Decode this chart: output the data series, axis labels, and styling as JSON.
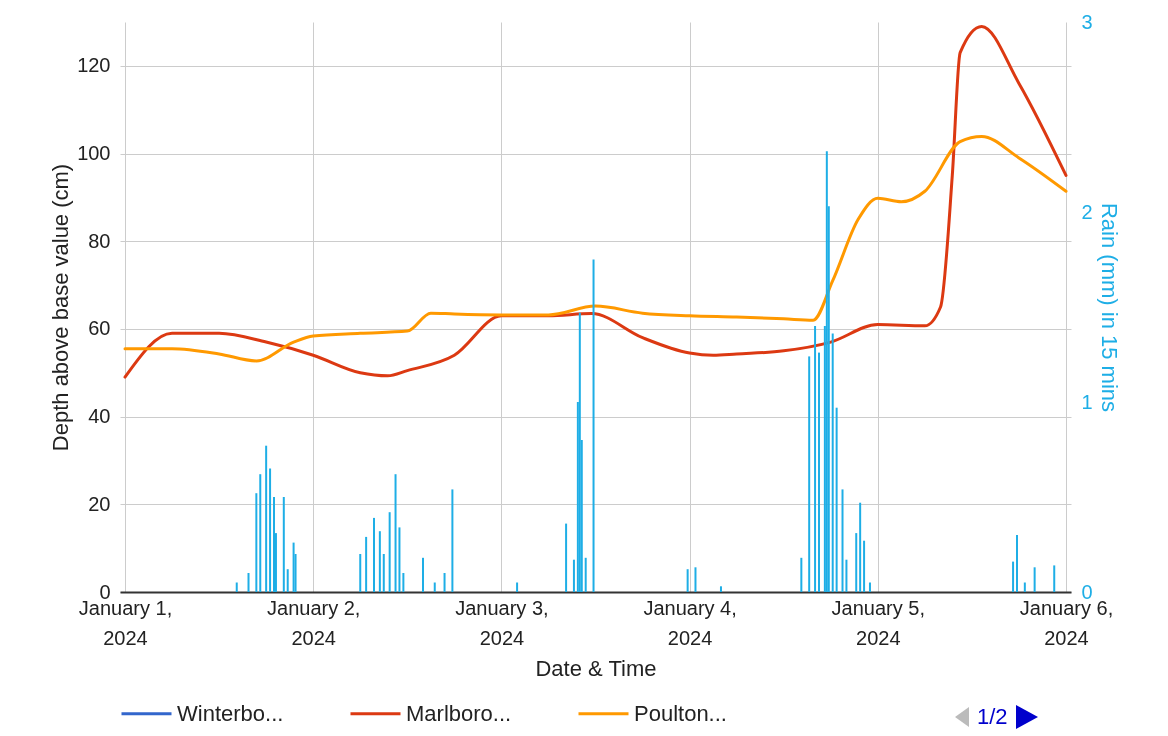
{
  "chart_data": {
    "type": "line",
    "xlabel": "Date & Time",
    "ylabel": "Depth above base value (cm)",
    "y2label": "Rain (mm) in 15 mins",
    "xlim": [
      "2024-01-01T00:00",
      "2024-01-06T00:00"
    ],
    "xticks": [
      {
        "value": "2024-01-01",
        "label": "January 1, 2024"
      },
      {
        "value": "2024-01-02",
        "label": "January 2, 2024"
      },
      {
        "value": "2024-01-03",
        "label": "January 3, 2024"
      },
      {
        "value": "2024-01-04",
        "label": "January 4, 2024"
      },
      {
        "value": "2024-01-05",
        "label": "January 5, 2024"
      },
      {
        "value": "2024-01-06",
        "label": "January 6, 2024"
      }
    ],
    "ylim": [
      0,
      130
    ],
    "yticks": [
      0,
      20,
      40,
      60,
      80,
      100,
      120
    ],
    "y2lim": [
      0,
      3
    ],
    "y2ticks": [
      0,
      1,
      2,
      3
    ],
    "grid": true,
    "legend": "bottom",
    "annotations": [
      "1/2"
    ],
    "series": [
      {
        "name": "Winterbo...",
        "color": "#3366cc"
      },
      {
        "name": "Marlboro...",
        "color": "#dc3912",
        "x": [
          "2024-01-01T00:00",
          "2024-01-01T06:00",
          "2024-01-01T12:00",
          "2024-01-01T18:00",
          "2024-01-02T00:00",
          "2024-01-02T06:00",
          "2024-01-02T09:30",
          "2024-01-02T12:00",
          "2024-01-02T18:00",
          "2024-01-03T00:00",
          "2024-01-03T06:00",
          "2024-01-03T11:30",
          "2024-01-03T18:00",
          "2024-01-04T00:00",
          "2024-01-04T03:00",
          "2024-01-04T06:00",
          "2024-01-04T12:00",
          "2024-01-04T18:00",
          "2024-01-05T00:00",
          "2024-01-05T06:00",
          "2024-01-05T08:00",
          "2024-01-05T09:30",
          "2024-01-05T10:30",
          "2024-01-05T13:15",
          "2024-01-05T18:00",
          "2024-01-06T00:00"
        ],
        "values": [
          49,
          59,
          59,
          57,
          54,
          50,
          49.3,
          50.5,
          54,
          63,
          63,
          63.5,
          58,
          54.5,
          54,
          54.3,
          55,
          57,
          61,
          60.7,
          65,
          95,
          123,
          129,
          116,
          95
        ]
      },
      {
        "name": "Poulton...",
        "color": "#ff9900",
        "x": [
          "2024-01-01T00:00",
          "2024-01-01T06:00",
          "2024-01-01T12:00",
          "2024-01-01T16:45",
          "2024-01-01T21:30",
          "2024-01-02T00:00",
          "2024-01-02T06:00",
          "2024-01-02T12:00",
          "2024-01-02T15:00",
          "2024-01-02T18:00",
          "2024-01-03T00:00",
          "2024-01-03T06:00",
          "2024-01-03T12:00",
          "2024-01-03T18:00",
          "2024-01-04T00:00",
          "2024-01-04T06:00",
          "2024-01-04T12:00",
          "2024-01-04T15:45",
          "2024-01-04T18:15",
          "2024-01-04T21:30",
          "2024-01-05T00:00",
          "2024-01-05T03:00",
          "2024-01-05T06:00",
          "2024-01-05T10:30",
          "2024-01-05T13:15",
          "2024-01-05T18:00",
          "2024-01-06T00:00"
        ],
        "values": [
          55.5,
          55.5,
          54.3,
          52.7,
          57,
          58.4,
          59,
          59.5,
          63.6,
          63.4,
          63.2,
          63.2,
          65.2,
          63.6,
          63,
          62.7,
          62.3,
          62,
          71,
          85,
          89.8,
          89,
          91.4,
          102.7,
          103.9,
          99,
          91.4
        ]
      },
      {
        "type": "bar",
        "axis": "y2",
        "color": "#1eaee6",
        "x": [
          "2024-01-01T14:15",
          "2024-01-01T15:45",
          "2024-01-01T16:45",
          "2024-01-01T17:15",
          "2024-01-01T18:00",
          "2024-01-01T18:30",
          "2024-01-01T19:00",
          "2024-01-01T19:15",
          "2024-01-01T20:15",
          "2024-01-01T20:45",
          "2024-01-01T21:30",
          "2024-01-01T21:45",
          "2024-01-02T06:00",
          "2024-01-02T06:45",
          "2024-01-02T07:45",
          "2024-01-02T08:30",
          "2024-01-02T09:00",
          "2024-01-02T09:45",
          "2024-01-02T10:30",
          "2024-01-02T11:00",
          "2024-01-02T11:30",
          "2024-01-02T14:00",
          "2024-01-02T15:30",
          "2024-01-02T16:45",
          "2024-01-02T17:45",
          "2024-01-03T02:00",
          "2024-01-03T08:15",
          "2024-01-03T09:15",
          "2024-01-03T09:45",
          "2024-01-03T10:00",
          "2024-01-03T10:15",
          "2024-01-03T10:45",
          "2024-01-03T11:45",
          "2024-01-03T23:45",
          "2024-01-04T00:45",
          "2024-01-04T04:00",
          "2024-01-04T14:15",
          "2024-01-04T15:15",
          "2024-01-04T16:00",
          "2024-01-04T16:30",
          "2024-01-04T17:15",
          "2024-01-04T17:30",
          "2024-01-04T17:45",
          "2024-01-04T18:15",
          "2024-01-04T18:45",
          "2024-01-04T19:30",
          "2024-01-04T20:00",
          "2024-01-04T21:15",
          "2024-01-04T21:45",
          "2024-01-04T22:15",
          "2024-01-04T23:00",
          "2024-01-05T17:15",
          "2024-01-05T17:45",
          "2024-01-05T18:45",
          "2024-01-05T20:00",
          "2024-01-05T22:30"
        ],
        "values": [
          0.05,
          0.1,
          0.52,
          0.62,
          0.77,
          0.65,
          0.5,
          0.31,
          0.5,
          0.12,
          0.26,
          0.2,
          0.2,
          0.29,
          0.39,
          0.32,
          0.2,
          0.42,
          0.62,
          0.34,
          0.1,
          0.18,
          0.05,
          0.1,
          0.54,
          0.05,
          0.36,
          0.17,
          1.0,
          1.47,
          0.8,
          0.18,
          1.75,
          0.12,
          0.13,
          0.03,
          0.18,
          1.24,
          1.4,
          1.26,
          1.4,
          2.32,
          2.03,
          1.36,
          0.97,
          0.54,
          0.17,
          0.31,
          0.47,
          0.27,
          0.05,
          0.16,
          0.3,
          0.05,
          0.13,
          0.14
        ]
      }
    ]
  }
}
